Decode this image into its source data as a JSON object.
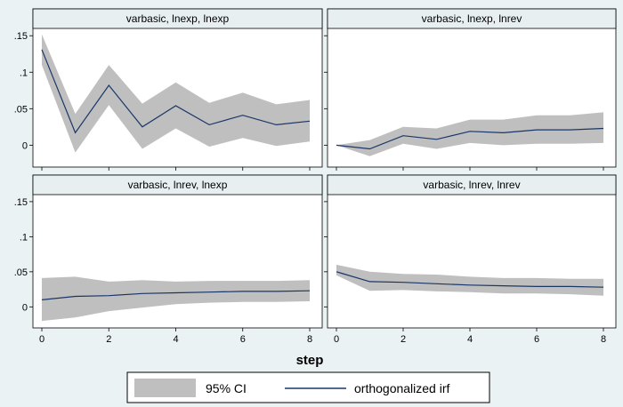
{
  "figure": {
    "xlabel": "step",
    "legend": {
      "placement": "bottom",
      "ci_label": "95% CI",
      "irf_label": "orthogonalized irf"
    },
    "colors": {
      "background": "#eaf2f3",
      "panel": "#ffffff",
      "header": "#e8eff1",
      "ci_band": "#bfbfbf",
      "irf_line": "#1a3668",
      "frame": "#000000"
    }
  },
  "chart_data": [
    {
      "type": "area",
      "title": "varbasic, lnexp, lnexp",
      "x": [
        0,
        1,
        2,
        3,
        4,
        5,
        6,
        7,
        8
      ],
      "xticks": [
        0,
        2,
        4,
        6,
        8
      ],
      "xlim": [
        0,
        8
      ],
      "yticks": [
        0,
        0.05,
        0.1,
        0.15
      ],
      "ytick_labels": [
        "0",
        ".05",
        ".1",
        ".15"
      ],
      "ylim": [
        -0.03,
        0.16
      ],
      "series": [
        {
          "name": "95% CI",
          "lower": [
            0.11,
            -0.01,
            0.055,
            -0.005,
            0.023,
            -0.002,
            0.01,
            -0.001,
            0.005
          ],
          "upper": [
            0.152,
            0.043,
            0.11,
            0.057,
            0.086,
            0.058,
            0.072,
            0.056,
            0.062
          ]
        },
        {
          "name": "orthogonalized irf",
          "values": [
            0.131,
            0.017,
            0.082,
            0.025,
            0.054,
            0.028,
            0.041,
            0.028,
            0.033
          ]
        }
      ]
    },
    {
      "type": "area",
      "title": "varbasic, lnexp, lnrev",
      "x": [
        0,
        1,
        2,
        3,
        4,
        5,
        6,
        7,
        8
      ],
      "xticks": [
        0,
        2,
        4,
        6,
        8
      ],
      "xlim": [
        0,
        8
      ],
      "yticks": [
        0,
        0.05,
        0.1,
        0.15
      ],
      "ytick_labels": [
        "0",
        ".05",
        ".1",
        ".15"
      ],
      "ylim": [
        -0.03,
        0.16
      ],
      "series": [
        {
          "name": "95% CI",
          "lower": [
            0,
            -0.015,
            0.002,
            -0.005,
            0.003,
            0.0,
            0.002,
            0.002,
            0.003
          ],
          "upper": [
            0,
            0.007,
            0.025,
            0.023,
            0.035,
            0.035,
            0.041,
            0.041,
            0.045
          ]
        },
        {
          "name": "orthogonalized irf",
          "values": [
            0,
            -0.005,
            0.013,
            0.008,
            0.019,
            0.017,
            0.021,
            0.021,
            0.023
          ]
        }
      ]
    },
    {
      "type": "area",
      "title": "varbasic, lnrev, lnexp",
      "x": [
        0,
        1,
        2,
        3,
        4,
        5,
        6,
        7,
        8
      ],
      "xticks": [
        0,
        2,
        4,
        6,
        8
      ],
      "xlim": [
        0,
        8
      ],
      "yticks": [
        0,
        0.05,
        0.1,
        0.15
      ],
      "ytick_labels": [
        "0",
        ".05",
        ".1",
        ".15"
      ],
      "ylim": [
        -0.03,
        0.16
      ],
      "series": [
        {
          "name": "95% CI",
          "lower": [
            -0.02,
            -0.015,
            -0.006,
            -0.001,
            0.004,
            0.006,
            0.007,
            0.007,
            0.008
          ],
          "upper": [
            0.041,
            0.043,
            0.036,
            0.038,
            0.036,
            0.037,
            0.037,
            0.037,
            0.038
          ]
        },
        {
          "name": "orthogonalized irf",
          "values": [
            0.01,
            0.015,
            0.016,
            0.019,
            0.02,
            0.021,
            0.022,
            0.022,
            0.023
          ]
        }
      ]
    },
    {
      "type": "area",
      "title": "varbasic, lnrev, lnrev",
      "x": [
        0,
        1,
        2,
        3,
        4,
        5,
        6,
        7,
        8
      ],
      "xticks": [
        0,
        2,
        4,
        6,
        8
      ],
      "xlim": [
        0,
        8
      ],
      "yticks": [
        0,
        0.05,
        0.1,
        0.15
      ],
      "ytick_labels": [
        "0",
        ".05",
        ".1",
        ".15"
      ],
      "ylim": [
        -0.03,
        0.16
      ],
      "series": [
        {
          "name": "95% CI",
          "lower": [
            0.045,
            0.023,
            0.024,
            0.022,
            0.021,
            0.019,
            0.019,
            0.018,
            0.016
          ],
          "upper": [
            0.06,
            0.05,
            0.047,
            0.046,
            0.043,
            0.041,
            0.041,
            0.04,
            0.04
          ]
        },
        {
          "name": "orthogonalized irf",
          "values": [
            0.05,
            0.036,
            0.035,
            0.033,
            0.031,
            0.03,
            0.029,
            0.029,
            0.028
          ]
        }
      ]
    }
  ]
}
